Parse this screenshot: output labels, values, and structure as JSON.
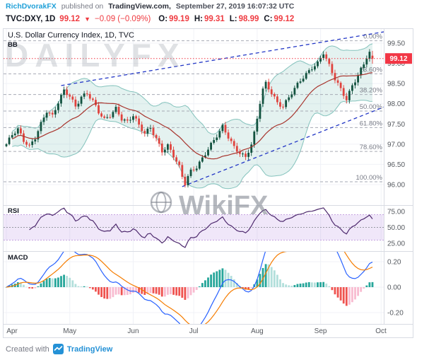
{
  "header": {
    "author": "RichDvorakFX",
    "published_text": "published on",
    "site": "TradingView.com,",
    "datetime": "September 27, 2019 16:07:32 UTC"
  },
  "symbol_bar": {
    "symbol": "TVC:DXY, 1D",
    "price": "99.12",
    "arrow": "▼",
    "change": "−0.09 (−0.09%)",
    "ohlc": [
      {
        "label": "O:",
        "value": "99.19"
      },
      {
        "label": "H:",
        "value": "99.31"
      },
      {
        "label": "L:",
        "value": "98.99"
      },
      {
        "label": "C:",
        "value": "99.12"
      }
    ]
  },
  "legend": {
    "title": "U.S. Dollar Currency Index, 1D, TVC",
    "indicator": "BB"
  },
  "panels": {
    "rsi_label": "RSI",
    "macd_label": "MACD"
  },
  "watermarks": {
    "top": "DAILYFX",
    "center": "WikiFX"
  },
  "footer": {
    "created_with": "Created with",
    "brand": "TradingView"
  },
  "chart_data": {
    "type": "candlestick",
    "title": "U.S. Dollar Currency Index, 1D, TVC",
    "x_axis": {
      "labels": [
        "Apr",
        "May",
        "Jun",
        "Jul",
        "Aug",
        "Sep",
        "Oct"
      ],
      "label_days": [
        0,
        22,
        44,
        65,
        87,
        109,
        130
      ],
      "num_days": 128
    },
    "y_axis": {
      "ticks": [
        99.5,
        99.0,
        98.5,
        98.0,
        97.5,
        97.0,
        96.5,
        96.0
      ],
      "tick_labels": [
        "99.50",
        "99.00",
        "98.50",
        "98.00",
        "97.50",
        "97.00",
        "96.50",
        "96.00"
      ]
    },
    "last_price": {
      "value": 99.12,
      "label": "99.12"
    },
    "last_candle": {
      "o": 99.19,
      "h": 99.31,
      "l": 98.99,
      "c": 99.12
    },
    "price_path": [
      [
        0,
        97.0
      ],
      [
        2,
        97.22
      ],
      [
        4,
        97.35
      ],
      [
        6,
        97.08
      ],
      [
        8,
        96.95
      ],
      [
        10,
        97.18
      ],
      [
        12,
        97.52
      ],
      [
        14,
        97.82
      ],
      [
        16,
        97.68
      ],
      [
        18,
        98.02
      ],
      [
        20,
        98.32
      ],
      [
        22,
        98.2
      ],
      [
        24,
        97.95
      ],
      [
        26,
        98.18
      ],
      [
        28,
        98.26
      ],
      [
        30,
        98.05
      ],
      [
        32,
        97.78
      ],
      [
        34,
        97.6
      ],
      [
        36,
        97.72
      ],
      [
        38,
        97.9
      ],
      [
        40,
        97.64
      ],
      [
        42,
        97.55
      ],
      [
        44,
        97.7
      ],
      [
        46,
        97.45
      ],
      [
        48,
        97.26
      ],
      [
        50,
        97.42
      ],
      [
        52,
        97.15
      ],
      [
        54,
        96.84
      ],
      [
        56,
        96.96
      ],
      [
        58,
        96.7
      ],
      [
        60,
        96.42
      ],
      [
        61,
        96.18
      ],
      [
        62,
        96.02
      ],
      [
        63,
        96.2
      ],
      [
        64,
        96.34
      ],
      [
        66,
        96.45
      ],
      [
        68,
        96.66
      ],
      [
        70,
        96.88
      ],
      [
        72,
        97.08
      ],
      [
        74,
        97.3
      ],
      [
        75,
        97.42
      ],
      [
        77,
        97.18
      ],
      [
        79,
        96.94
      ],
      [
        81,
        96.8
      ],
      [
        83,
        96.68
      ],
      [
        85,
        96.98
      ],
      [
        86,
        97.25
      ],
      [
        87,
        97.62
      ],
      [
        88,
        98.02
      ],
      [
        89,
        98.34
      ],
      [
        90,
        98.5
      ],
      [
        92,
        98.28
      ],
      [
        94,
        98.04
      ],
      [
        96,
        97.94
      ],
      [
        98,
        98.16
      ],
      [
        100,
        98.36
      ],
      [
        102,
        98.56
      ],
      [
        104,
        98.72
      ],
      [
        106,
        98.9
      ],
      [
        108,
        99.02
      ],
      [
        110,
        99.28
      ],
      [
        112,
        98.94
      ],
      [
        114,
        98.6
      ],
      [
        116,
        98.34
      ],
      [
        118,
        98.1
      ],
      [
        120,
        98.46
      ],
      [
        122,
        98.72
      ],
      [
        124,
        99.0
      ],
      [
        125,
        99.16
      ],
      [
        126,
        99.26
      ],
      [
        127,
        99.12
      ]
    ],
    "fib_levels": [
      {
        "label": "0.00%",
        "price": 99.56
      },
      {
        "label": "23.60%",
        "price": 98.74
      },
      {
        "label": "38.20%",
        "price": 98.23
      },
      {
        "label": "50.00%",
        "price": 97.82
      },
      {
        "label": "61.80%",
        "price": 97.41
      },
      {
        "label": "78.60%",
        "price": 96.82
      },
      {
        "label": "100.00%",
        "price": 96.07
      }
    ],
    "trendlines": [
      {
        "from_day": 19,
        "from_price": 98.45,
        "to_day": 131,
        "to_price": 99.78
      },
      {
        "from_day": 61,
        "from_price": 95.95,
        "to_day": 131,
        "to_price": 97.92
      }
    ],
    "indicators": {
      "bb": {
        "period": 20,
        "stdev": 2
      },
      "rsi": {
        "period": 14,
        "band": [
          30,
          70
        ],
        "ticks": [
          75,
          50,
          25
        ],
        "tick_labels": [
          "75.00",
          "50.00",
          "25.00"
        ]
      },
      "macd": {
        "fast": 12,
        "slow": 26,
        "signal": 9,
        "ticks": [
          0.2,
          0.0,
          -0.2
        ],
        "tick_labels": [
          "0.20",
          "0.00",
          "-0.20"
        ]
      }
    },
    "colors": {
      "up": "#12523f",
      "down": "#e0433e",
      "bb_fill": "rgba(44,152,140,0.13)",
      "bb_line": "rgba(44,152,140,0.55)",
      "bb_basis": "#a8352e",
      "fib": "#a6aab4",
      "fib_text": "#787b86",
      "trend": "#2337c6",
      "rsi": "#4e2a6e",
      "rsi_fill": "rgba(170,120,220,0.18)",
      "rsi_band_line": "#c5a3e0",
      "macd_line": "#2962ff",
      "signal_line": "#f57c00",
      "hist_up": "#26a69a",
      "hist_up_weak": "#b2dfdb",
      "hist_down": "#ef5350",
      "hist_down_weak": "#f8bbd0",
      "price_line": "#f23645",
      "grid": "#f0f2f7",
      "axis_text": "#55595f",
      "border": "#d8dbe3"
    }
  }
}
